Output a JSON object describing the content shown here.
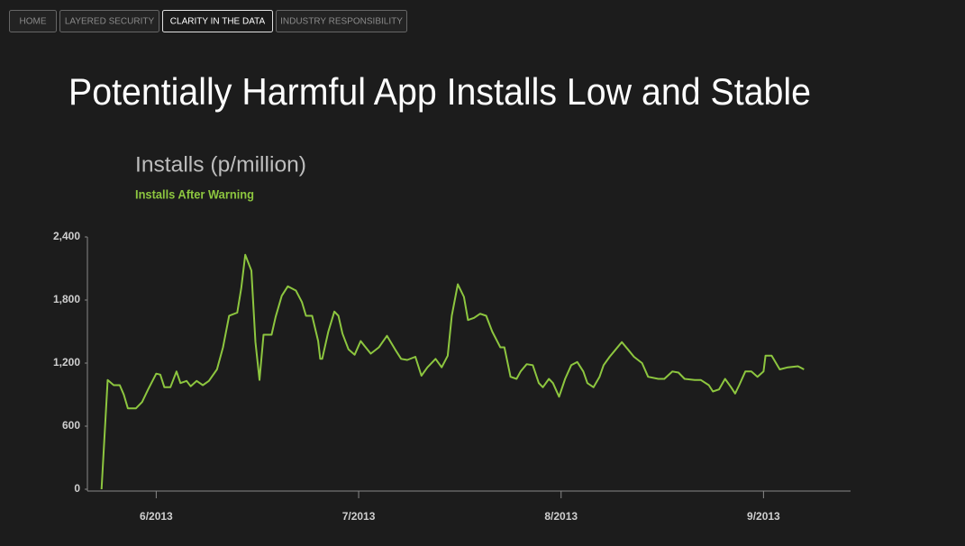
{
  "nav": {
    "tabs": [
      {
        "label": "HOME",
        "active": false
      },
      {
        "label": "LAYERED SECURITY",
        "active": false
      },
      {
        "label": "CLARITY IN THE DATA",
        "active": true
      },
      {
        "label": "INDUSTRY RESPONSIBILITY",
        "active": false
      }
    ]
  },
  "header": {
    "title": "Potentially Harmful App Installs Low and Stable"
  },
  "chart_data": {
    "type": "line",
    "title": "Installs (p/million)",
    "x": [
      5.73,
      5.76,
      5.79,
      5.82,
      5.84,
      5.86,
      5.9,
      5.93,
      5.96,
      6.0,
      6.02,
      6.04,
      6.07,
      6.1,
      6.12,
      6.15,
      6.17,
      6.2,
      6.23,
      6.26,
      6.3,
      6.33,
      6.36,
      6.4,
      6.42,
      6.44,
      6.47,
      6.49,
      6.51,
      6.53,
      6.57,
      6.59,
      6.62,
      6.65,
      6.69,
      6.72,
      6.74,
      6.77,
      6.8,
      6.81,
      6.82,
      6.85,
      6.88,
      6.9,
      6.92,
      6.95,
      6.98,
      7.01,
      7.03,
      7.06,
      7.1,
      7.14,
      7.18,
      7.21,
      7.24,
      7.28,
      7.31,
      7.34,
      7.38,
      7.41,
      7.44,
      7.46,
      7.49,
      7.52,
      7.54,
      7.57,
      7.6,
      7.63,
      7.66,
      7.7,
      7.72,
      7.75,
      7.78,
      7.8,
      7.83,
      7.86,
      7.89,
      7.91,
      7.94,
      7.96,
      7.99,
      8.02,
      8.05,
      8.08,
      8.11,
      8.13,
      8.16,
      8.19,
      8.21,
      8.24,
      8.27,
      8.3,
      8.33,
      8.36,
      8.4,
      8.43,
      8.48,
      8.51,
      8.55,
      8.58,
      8.61,
      8.66,
      8.69,
      8.73,
      8.75,
      8.78,
      8.81,
      8.84,
      8.86,
      8.88,
      8.91,
      8.94,
      8.97,
      9.0,
      9.01,
      9.04,
      9.08,
      9.12,
      9.17,
      9.2
    ],
    "series": [
      {
        "name": "Installs After Warning",
        "color": "#8dc63f",
        "values": [
          0,
          1040,
          990,
          990,
          900,
          770,
          770,
          830,
          950,
          1100,
          1090,
          970,
          970,
          1120,
          1010,
          1030,
          980,
          1030,
          990,
          1030,
          1140,
          1350,
          1650,
          1680,
          1910,
          2230,
          2080,
          1400,
          1040,
          1470,
          1470,
          1640,
          1840,
          1930,
          1890,
          1780,
          1650,
          1650,
          1410,
          1240,
          1240,
          1500,
          1690,
          1650,
          1480,
          1330,
          1280,
          1410,
          1360,
          1290,
          1350,
          1460,
          1330,
          1240,
          1230,
          1260,
          1080,
          1160,
          1240,
          1160,
          1270,
          1650,
          1950,
          1830,
          1610,
          1630,
          1670,
          1650,
          1500,
          1350,
          1350,
          1070,
          1050,
          1120,
          1190,
          1180,
          1010,
          970,
          1050,
          1010,
          880,
          1050,
          1180,
          1210,
          1120,
          1010,
          970,
          1070,
          1180,
          1260,
          1330,
          1400,
          1330,
          1260,
          1200,
          1070,
          1050,
          1050,
          1120,
          1110,
          1050,
          1040,
          1040,
          990,
          930,
          950,
          1050,
          970,
          910,
          990,
          1120,
          1120,
          1070,
          1120,
          1270,
          1270,
          1140,
          1160,
          1170,
          1140
        ]
      }
    ],
    "xlim": [
      5.66,
      9.43
    ],
    "xticks": [
      {
        "value": 6,
        "label": "6/2013"
      },
      {
        "value": 7,
        "label": "7/2013"
      },
      {
        "value": 8,
        "label": "8/2013"
      },
      {
        "value": 9,
        "label": "9/2013"
      }
    ],
    "ylim": [
      0,
      2400
    ],
    "yticks": [
      0,
      {
        "value": 600,
        "label": "600"
      },
      {
        "value": 1200,
        "label": "1,200"
      },
      {
        "value": 1800,
        "label": "1,800"
      },
      {
        "value": 2400,
        "label": "2,400"
      }
    ],
    "grid": false
  }
}
